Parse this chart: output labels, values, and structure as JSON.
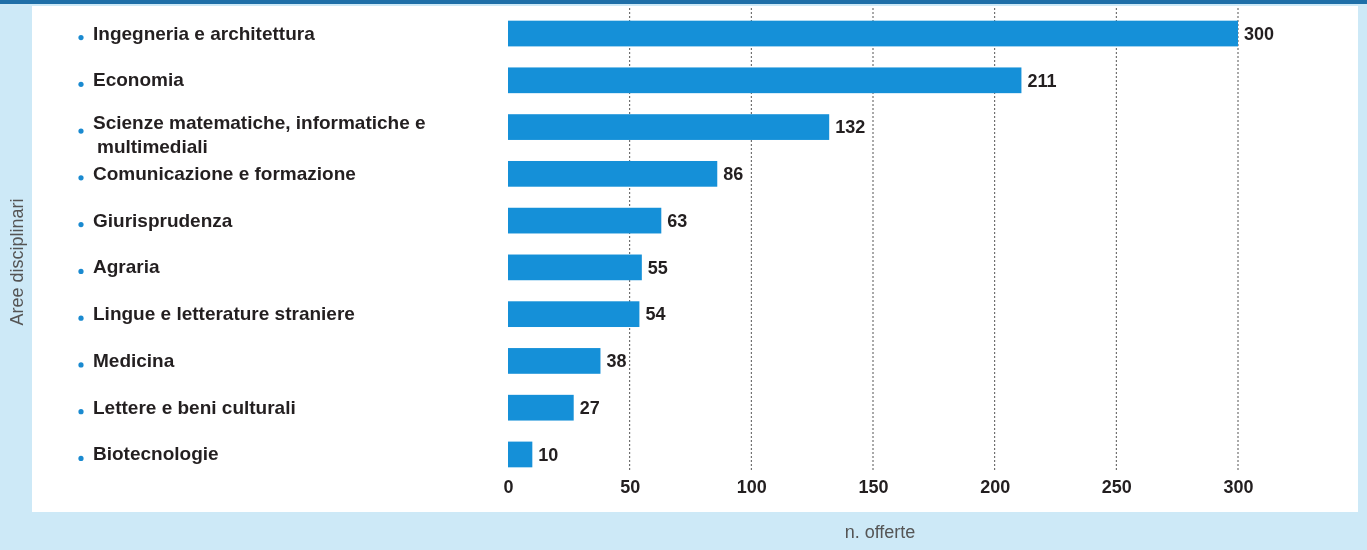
{
  "chart_data": {
    "type": "bar",
    "orientation": "horizontal",
    "xlabel": "n. offerte",
    "ylabel": "Aree disciplinari",
    "categories": [
      "Ingegneria e architettura",
      "Economia",
      "Scienze matematiche, informatiche e multimediali",
      "Comunicazione e formazione",
      "Giurisprudenza",
      "Agraria",
      "Lingue e letterature straniere",
      "Medicina",
      "Lettere e beni culturali",
      "Biotecnologie"
    ],
    "values": [
      300,
      211,
      132,
      86,
      63,
      55,
      54,
      38,
      27,
      10
    ],
    "color": "#1590d8",
    "xlim": [
      0,
      300
    ],
    "xticks": [
      0,
      50,
      100,
      150,
      200,
      250,
      300
    ],
    "grid": "x",
    "data_labels": true
  }
}
